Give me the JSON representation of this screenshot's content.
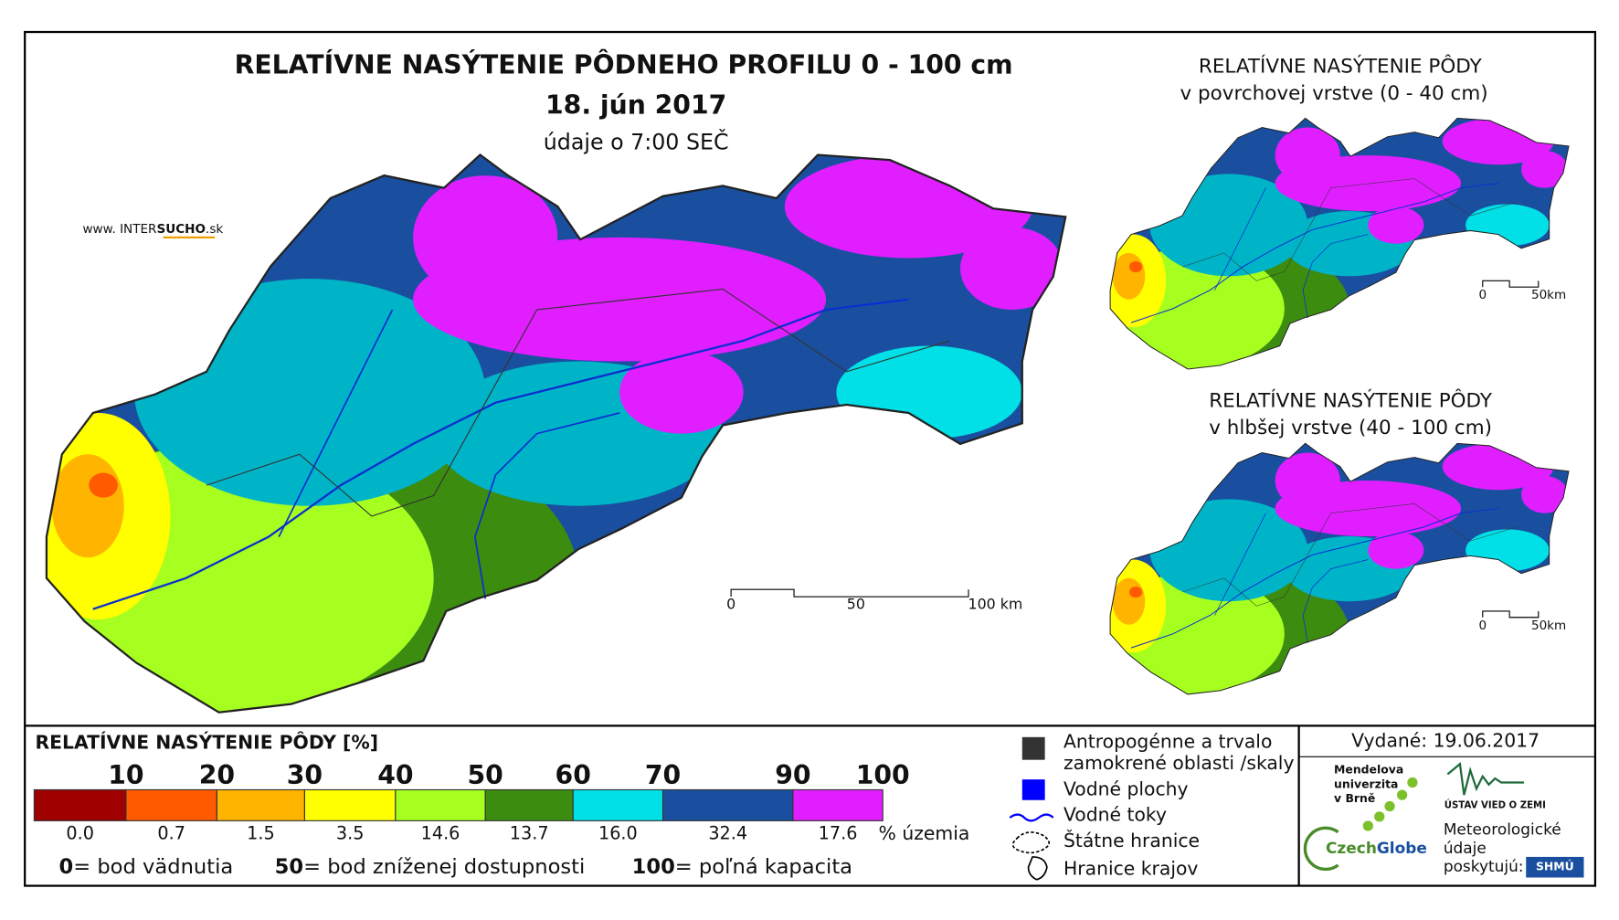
{
  "header": {
    "title": "RELATÍVNE NASÝTENIE PÔDNEHO PROFILU 0 - 100 cm",
    "date": "18. jún 2017",
    "time_note": "údaje o 7:00 SEČ",
    "website": {
      "prefix": "www. INTER",
      "brand": "SUCHO",
      "suffix": ".sk"
    }
  },
  "main_map": {
    "scale": [
      "0",
      "50",
      "100 km"
    ]
  },
  "inset_top": {
    "title": [
      "RELATÍVNE NASÝTENIE PÔDY",
      "v povrchovej vrstve (0 - 40 cm)"
    ],
    "scale": [
      "0",
      "50km"
    ]
  },
  "inset_bottom": {
    "title": [
      "RELATÍVNE NASÝTENIE PÔDY",
      "v hlbšej vrstve (40 - 100 cm)"
    ],
    "scale": [
      "0",
      "50km"
    ]
  },
  "legend": {
    "title": "RELATÍVNE NASÝTENIE PÔDY [%]",
    "classes": [
      {
        "bound": "10",
        "color": "#a00000",
        "share": "0.0"
      },
      {
        "bound": "20",
        "color": "#ff5a00",
        "share": "0.7"
      },
      {
        "bound": "30",
        "color": "#ffb400",
        "share": "1.5"
      },
      {
        "bound": "40",
        "color": "#ffff00",
        "share": "3.5"
      },
      {
        "bound": "50",
        "color": "#a6ff1e",
        "share": "14.6"
      },
      {
        "bound": "60",
        "color": "#3c8c10",
        "share": "13.7"
      },
      {
        "bound": "70",
        "color": "#00e0e6",
        "share": "16.0"
      },
      {
        "bound": "90",
        "color": "#1a4fa0",
        "share": "32.4"
      },
      {
        "bound": "100",
        "color": "#e01eff",
        "share": "17.6"
      }
    ],
    "share_unit": "% územia",
    "notes": [
      {
        "key": "0",
        "text": "= bod vädnutia"
      },
      {
        "key": "50",
        "text": "= bod zníženej dostupnosti"
      },
      {
        "key": "100",
        "text": "= poľná kapacita"
      }
    ],
    "symbols": [
      {
        "lines": [
          "Antropogénne a trvalo",
          "zamokrené oblasti /skaly"
        ]
      },
      {
        "lines": [
          "Vodné plochy"
        ]
      },
      {
        "lines": [
          "Vodné toky"
        ]
      },
      {
        "lines": [
          "Štátne hranice"
        ]
      },
      {
        "lines": [
          "Hranice krajov"
        ]
      }
    ]
  },
  "footer": {
    "issued": "Vydané: 19.06.2017",
    "mendel": [
      "Mendelova",
      "univerzita",
      "v Brně"
    ],
    "czechglobe": {
      "a": "Czech",
      "b": "Globe"
    },
    "ustav": "ÚSTAV VIED O ZEMI",
    "provider": [
      "Meteorologické",
      "údaje",
      "poskytujú:"
    ],
    "shmu": "SHMÚ"
  }
}
